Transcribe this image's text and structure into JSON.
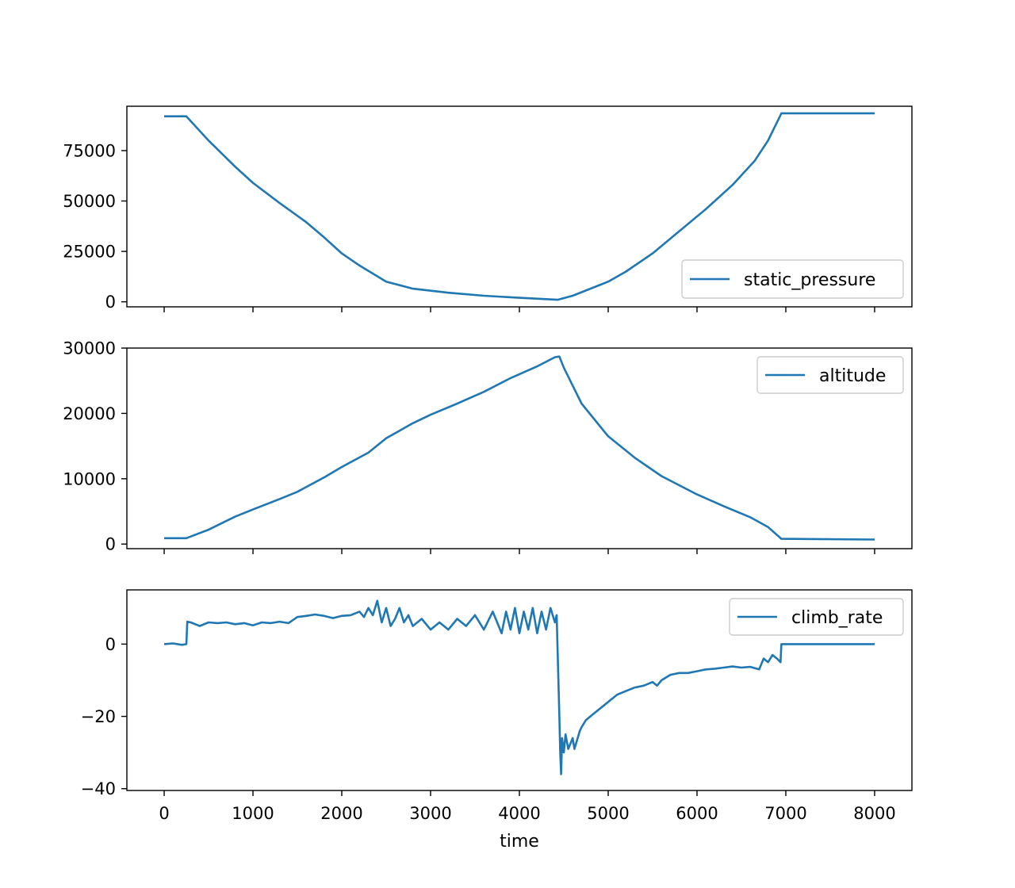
{
  "chart_data": [
    {
      "type": "line",
      "xlabel": "",
      "ylabel": "",
      "xlim": [
        -420,
        8420
      ],
      "ylim": [
        -2500,
        97000
      ],
      "xticks": [
        0,
        1000,
        2000,
        3000,
        4000,
        5000,
        6000,
        7000,
        8000
      ],
      "yticks": [
        0,
        25000,
        50000,
        75000
      ],
      "ytick_labels": [
        "0",
        "25000",
        "50000",
        "75000"
      ],
      "show_xtick_labels": false,
      "grid": false,
      "legend": "lower right",
      "color": "#1f77b4",
      "series": [
        {
          "name": "static_pressure",
          "points": [
            [
              0,
              92000
            ],
            [
              250,
              92000
            ],
            [
              500,
              80000
            ],
            [
              800,
              67000
            ],
            [
              1000,
              59000
            ],
            [
              1300,
              49000
            ],
            [
              1600,
              39500
            ],
            [
              1800,
              32000
            ],
            [
              2000,
              24000
            ],
            [
              2200,
              18000
            ],
            [
              2500,
              10000
            ],
            [
              2800,
              6500
            ],
            [
              3200,
              4500
            ],
            [
              3600,
              3000
            ],
            [
              4000,
              2000
            ],
            [
              4430,
              1000
            ],
            [
              4600,
              3000
            ],
            [
              5000,
              10000
            ],
            [
              5200,
              15000
            ],
            [
              5500,
              24000
            ],
            [
              5800,
              35000
            ],
            [
              6100,
              46000
            ],
            [
              6400,
              58000
            ],
            [
              6650,
              70000
            ],
            [
              6800,
              80000
            ],
            [
              6950,
              93500
            ],
            [
              8000,
              93500
            ]
          ]
        }
      ]
    },
    {
      "type": "line",
      "xlabel": "",
      "ylabel": "",
      "xlim": [
        -420,
        8420
      ],
      "ylim": [
        -700,
        30000
      ],
      "xticks": [
        0,
        1000,
        2000,
        3000,
        4000,
        5000,
        6000,
        7000,
        8000
      ],
      "yticks": [
        0,
        10000,
        20000,
        30000
      ],
      "ytick_labels": [
        "0",
        "10000",
        "20000",
        "30000"
      ],
      "show_xtick_labels": false,
      "grid": false,
      "legend": "upper right",
      "color": "#1f77b4",
      "series": [
        {
          "name": "altitude",
          "points": [
            [
              0,
              900
            ],
            [
              250,
              900
            ],
            [
              500,
              2200
            ],
            [
              800,
              4200
            ],
            [
              1000,
              5300
            ],
            [
              1300,
              6900
            ],
            [
              1500,
              8000
            ],
            [
              1800,
              10200
            ],
            [
              2000,
              11800
            ],
            [
              2300,
              14000
            ],
            [
              2500,
              16200
            ],
            [
              2800,
              18500
            ],
            [
              3000,
              19800
            ],
            [
              3300,
              21500
            ],
            [
              3600,
              23300
            ],
            [
              3900,
              25400
            ],
            [
              4200,
              27200
            ],
            [
              4400,
              28600
            ],
            [
              4450,
              28700
            ],
            [
              4500,
              27000
            ],
            [
              4700,
              21500
            ],
            [
              5000,
              16500
            ],
            [
              5300,
              13200
            ],
            [
              5600,
              10400
            ],
            [
              6000,
              7600
            ],
            [
              6300,
              5800
            ],
            [
              6600,
              4100
            ],
            [
              6800,
              2600
            ],
            [
              6950,
              800
            ],
            [
              8000,
              700
            ]
          ]
        }
      ]
    },
    {
      "type": "line",
      "xlabel": "time",
      "ylabel": "",
      "xlim": [
        -420,
        8420
      ],
      "ylim": [
        -40.5,
        15
      ],
      "xticks": [
        0,
        1000,
        2000,
        3000,
        4000,
        5000,
        6000,
        7000,
        8000
      ],
      "xtick_labels": [
        "0",
        "1000",
        "2000",
        "3000",
        "4000",
        "5000",
        "6000",
        "7000",
        "8000"
      ],
      "yticks": [
        -40,
        -20,
        0
      ],
      "ytick_labels": [
        "−40",
        "−20",
        "0"
      ],
      "show_xtick_labels": true,
      "grid": false,
      "legend": "upper right",
      "color": "#1f77b4",
      "series": [
        {
          "name": "climb_rate",
          "points": [
            [
              0,
              0
            ],
            [
              100,
              0.2
            ],
            [
              200,
              -0.2
            ],
            [
              250,
              0
            ],
            [
              260,
              6.2
            ],
            [
              300,
              6
            ],
            [
              400,
              5
            ],
            [
              500,
              6
            ],
            [
              600,
              5.8
            ],
            [
              700,
              6
            ],
            [
              800,
              5.5
            ],
            [
              900,
              5.8
            ],
            [
              1000,
              5.2
            ],
            [
              1100,
              6
            ],
            [
              1200,
              5.8
            ],
            [
              1300,
              6.2
            ],
            [
              1400,
              5.8
            ],
            [
              1500,
              7.5
            ],
            [
              1600,
              7.8
            ],
            [
              1700,
              8.2
            ],
            [
              1800,
              7.8
            ],
            [
              1900,
              7.2
            ],
            [
              2000,
              7.8
            ],
            [
              2100,
              8
            ],
            [
              2200,
              9
            ],
            [
              2250,
              7.5
            ],
            [
              2300,
              10
            ],
            [
              2350,
              8
            ],
            [
              2400,
              12
            ],
            [
              2450,
              6
            ],
            [
              2500,
              10
            ],
            [
              2550,
              5
            ],
            [
              2600,
              7
            ],
            [
              2650,
              10
            ],
            [
              2700,
              6
            ],
            [
              2750,
              8
            ],
            [
              2800,
              5
            ],
            [
              2900,
              7
            ],
            [
              3000,
              4
            ],
            [
              3100,
              6
            ],
            [
              3200,
              4
            ],
            [
              3300,
              7
            ],
            [
              3400,
              5
            ],
            [
              3500,
              8
            ],
            [
              3600,
              4
            ],
            [
              3700,
              9
            ],
            [
              3800,
              3
            ],
            [
              3850,
              9
            ],
            [
              3900,
              4
            ],
            [
              3950,
              10
            ],
            [
              4000,
              3
            ],
            [
              4050,
              9
            ],
            [
              4100,
              4
            ],
            [
              4150,
              10
            ],
            [
              4200,
              3
            ],
            [
              4250,
              9
            ],
            [
              4300,
              4
            ],
            [
              4350,
              10
            ],
            [
              4400,
              6
            ],
            [
              4420,
              8
            ],
            [
              4450,
              -20
            ],
            [
              4460,
              -30
            ],
            [
              4470,
              -36
            ],
            [
              4480,
              -26
            ],
            [
              4500,
              -30
            ],
            [
              4520,
              -25
            ],
            [
              4550,
              -29
            ],
            [
              4600,
              -26
            ],
            [
              4620,
              -29
            ],
            [
              4680,
              -24
            ],
            [
              4700,
              -23
            ],
            [
              4750,
              -21
            ],
            [
              4800,
              -20
            ],
            [
              4900,
              -18
            ],
            [
              5000,
              -16
            ],
            [
              5100,
              -14
            ],
            [
              5200,
              -13
            ],
            [
              5300,
              -12
            ],
            [
              5400,
              -11.5
            ],
            [
              5500,
              -10.5
            ],
            [
              5550,
              -11.5
            ],
            [
              5600,
              -10
            ],
            [
              5700,
              -8.5
            ],
            [
              5800,
              -8
            ],
            [
              5900,
              -8
            ],
            [
              6000,
              -7.5
            ],
            [
              6100,
              -7
            ],
            [
              6200,
              -6.8
            ],
            [
              6300,
              -6.5
            ],
            [
              6400,
              -6.2
            ],
            [
              6500,
              -6.5
            ],
            [
              6600,
              -6.3
            ],
            [
              6700,
              -7
            ],
            [
              6750,
              -4
            ],
            [
              6800,
              -5
            ],
            [
              6850,
              -3
            ],
            [
              6900,
              -4
            ],
            [
              6940,
              -5
            ],
            [
              6950,
              0
            ],
            [
              7200,
              0
            ],
            [
              7500,
              0
            ],
            [
              8000,
              0
            ]
          ]
        }
      ]
    }
  ]
}
